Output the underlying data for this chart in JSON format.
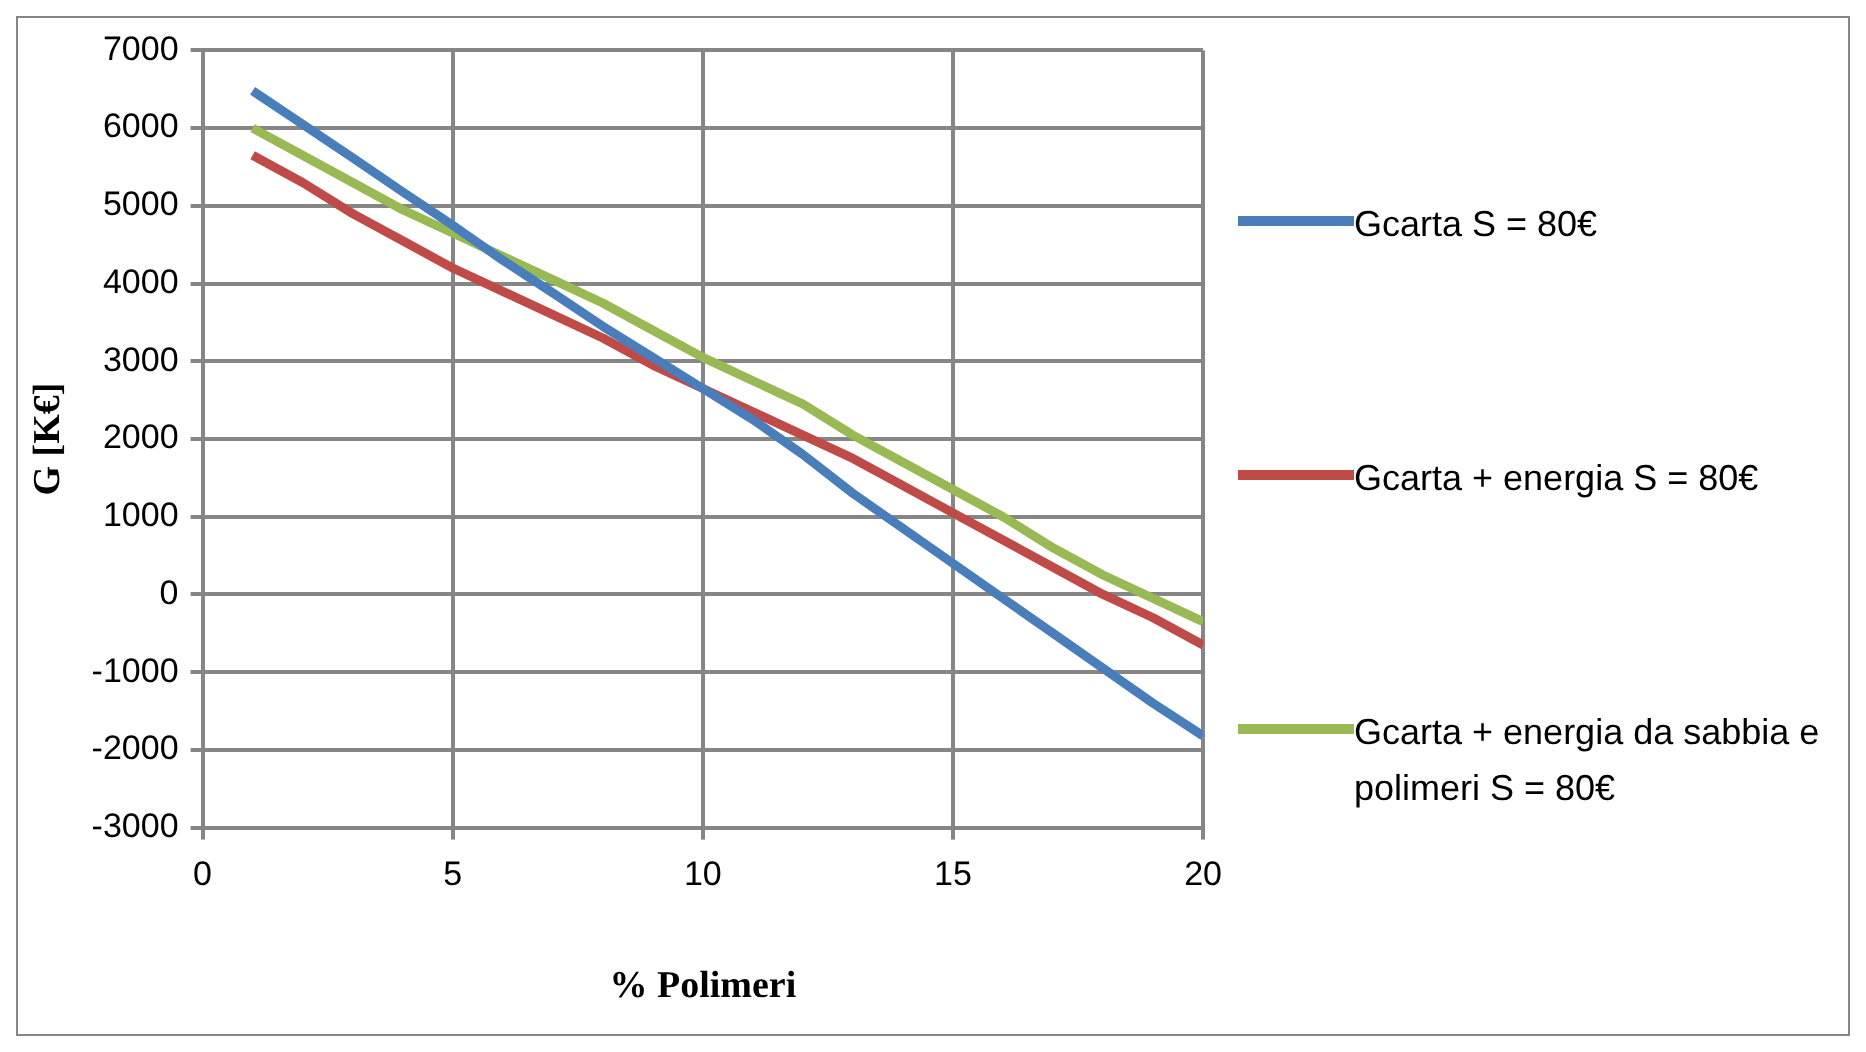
{
  "chart_data": {
    "type": "line",
    "xlabel": "% Polimeri",
    "ylabel": "G [K€]",
    "x": [
      1,
      2,
      3,
      4,
      5,
      6,
      7,
      8,
      9,
      10,
      11,
      12,
      13,
      14,
      15,
      16,
      17,
      18,
      19,
      20
    ],
    "series": [
      {
        "name": "Gcarta S = 80€",
        "color": "#4a7ebb",
        "values": [
          6480,
          6050,
          5620,
          5180,
          4750,
          4300,
          3880,
          3450,
          3050,
          2650,
          2250,
          1800,
          1300,
          850,
          400,
          -50,
          -500,
          -950,
          -1400,
          -1820
        ]
      },
      {
        "name": "Gcarta + energia S = 80€",
        "color": "#be4b48",
        "values": [
          5650,
          5300,
          4900,
          4550,
          4200,
          3900,
          3600,
          3300,
          2950,
          2650,
          2350,
          2050,
          1750,
          1400,
          1050,
          700,
          350,
          0,
          -300,
          -650
        ]
      },
      {
        "name": "Gcarta + energia da sabbia e polimeri S = 80€",
        "color": "#98b954",
        "values": [
          6000,
          5650,
          5300,
          4950,
          4650,
          4350,
          4050,
          3750,
          3400,
          3050,
          2750,
          2450,
          2050,
          1700,
          1350,
          1000,
          600,
          250,
          -50,
          -350
        ]
      }
    ],
    "xlim": [
      0,
      20
    ],
    "xticks": [
      0,
      5,
      10,
      15,
      20
    ],
    "ylim": [
      -3000,
      7000
    ],
    "yticks": [
      -3000,
      -2000,
      -1000,
      0,
      1000,
      2000,
      3000,
      4000,
      5000,
      6000,
      7000
    ],
    "grid": true,
    "legend": "right",
    "marker": "none",
    "line_style": "solid"
  }
}
